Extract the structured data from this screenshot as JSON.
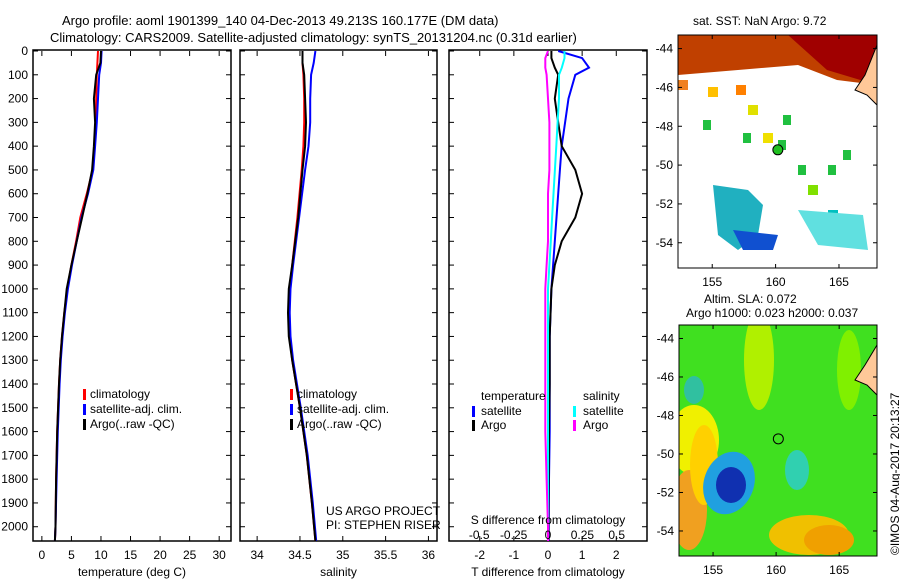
{
  "header": {
    "title1": "Argo profile: aoml 1901399_140 04-Dec-2013 49.213S 160.177E (DM data)",
    "title2": "Climatology: CARS2009. Satellite-adjusted climatology: synTS_20131204.nc (0.31d earlier)"
  },
  "credits": {
    "project": "US ARGO PROJECT",
    "pi": "PI: STEPHEN RISER",
    "stamp": "©IMOS 04-Aug-2017 20:13:27"
  },
  "colors": {
    "climatology": "#ff0000",
    "satellite": "#0000ff",
    "argo": "#000000",
    "s_satellite": "#00ffff",
    "s_argo": "#ff00ff"
  },
  "chart_data": [
    {
      "type": "line",
      "name": "temperature",
      "xlabel": "temperature (deg C)",
      "xlim": [
        -1.5,
        32
      ],
      "ylim": [
        2060,
        0
      ],
      "xticks": [
        0,
        5,
        10,
        15,
        20,
        25,
        30
      ],
      "yticks": [
        0,
        100,
        200,
        300,
        400,
        500,
        600,
        700,
        800,
        900,
        1000,
        1100,
        1200,
        1300,
        1400,
        1500,
        1600,
        1700,
        1800,
        1900,
        2000
      ],
      "legend": [
        "climatology",
        "satellite-adj. clim.",
        "Argo(..raw -QC)"
      ],
      "depth": [
        0,
        50,
        100,
        200,
        300,
        400,
        500,
        600,
        700,
        800,
        900,
        1000,
        1100,
        1200,
        1300,
        1400,
        1600,
        1800,
        2000,
        2060
      ],
      "series": [
        {
          "name": "climatology",
          "values": [
            9.5,
            9.4,
            9.3,
            9.2,
            9.1,
            8.9,
            8.6,
            7.6,
            6.5,
            5.8,
            5.0,
            4.3,
            3.8,
            3.4,
            3.1,
            2.9,
            2.6,
            2.4,
            2.3,
            2.2
          ]
        },
        {
          "name": "satellite-adj. clim.",
          "values": [
            10.1,
            10.0,
            9.7,
            9.5,
            9.3,
            9.0,
            8.7,
            7.8,
            6.7,
            5.9,
            5.1,
            4.4,
            3.9,
            3.5,
            3.2,
            3.0,
            2.7,
            2.5,
            2.3,
            2.2
          ]
        },
        {
          "name": "Argo(..raw -QC)",
          "values": [
            10.0,
            9.9,
            9.2,
            8.8,
            9.0,
            8.8,
            8.5,
            7.7,
            6.8,
            5.9,
            5.0,
            4.2,
            3.8,
            3.4,
            3.1,
            2.9,
            2.6,
            2.4,
            2.3,
            2.2
          ]
        }
      ]
    },
    {
      "type": "line",
      "name": "salinity",
      "xlabel": "salinity",
      "xlim": [
        33.8,
        36.1
      ],
      "ylim": [
        2060,
        0
      ],
      "xticks": [
        34,
        34.5,
        35,
        35.5,
        36
      ],
      "legend": [
        "climatology",
        "satellite-adj. clim.",
        "Argo(..raw -QC)"
      ],
      "depth": [
        0,
        50,
        100,
        200,
        300,
        400,
        500,
        700,
        900,
        1000,
        1100,
        1200,
        1300,
        1500,
        1700,
        1900,
        2060
      ],
      "series": [
        {
          "name": "climatology",
          "values": [
            34.53,
            34.53,
            34.54,
            34.55,
            34.55,
            34.54,
            34.52,
            34.47,
            34.41,
            34.38,
            34.37,
            34.38,
            34.41,
            34.5,
            34.58,
            34.64,
            34.68
          ]
        },
        {
          "name": "satellite-adj. clim.",
          "values": [
            34.68,
            34.66,
            34.63,
            34.62,
            34.62,
            34.6,
            34.56,
            34.49,
            34.42,
            34.39,
            34.38,
            34.39,
            34.42,
            34.51,
            34.59,
            34.65,
            34.69
          ]
        },
        {
          "name": "Argo(..raw -QC)",
          "values": [
            34.53,
            34.53,
            34.55,
            34.56,
            34.57,
            34.56,
            34.53,
            34.48,
            34.41,
            34.37,
            34.36,
            34.37,
            34.41,
            34.5,
            34.58,
            34.64,
            34.68
          ]
        }
      ]
    },
    {
      "type": "line",
      "name": "difference",
      "xlabel": "T difference from climatology",
      "x2label": "S difference from climatology",
      "xlim": [
        -2.9,
        2.9
      ],
      "x2lim": [
        -0.72,
        0.72
      ],
      "ylim": [
        2060,
        0
      ],
      "xticks": [
        -2,
        -1,
        0,
        1,
        2
      ],
      "x2ticks": [
        "-0.5",
        "-0.25",
        "0",
        "0.25",
        "0.5"
      ],
      "legend_t": {
        "title": "temperature",
        "items": [
          "satellite",
          "Argo"
        ]
      },
      "legend_s": {
        "title": "salinity",
        "items": [
          "satellite",
          "Argo"
        ]
      },
      "depth": [
        0,
        30,
        70,
        100,
        200,
        300,
        400,
        500,
        600,
        700,
        800,
        900,
        1000,
        1200,
        1400,
        1600,
        1800,
        2000,
        2060
      ],
      "series": [
        {
          "name": "T satellite",
          "axis": "T",
          "values": [
            0.3,
            1.0,
            1.2,
            0.8,
            0.6,
            0.5,
            0.4,
            0.35,
            0.3,
            0.25,
            0.2,
            0.15,
            0.1,
            0.05,
            0.05,
            0.05,
            0.03,
            0.02,
            0.02
          ]
        },
        {
          "name": "T Argo",
          "axis": "T",
          "values": [
            0.1,
            0.1,
            0.2,
            0.3,
            0.2,
            0.3,
            0.4,
            0.8,
            1.0,
            0.8,
            0.4,
            0.2,
            0.1,
            0.05,
            0.05,
            0.03,
            0.02,
            0.01,
            0.01
          ]
        },
        {
          "name": "S satellite",
          "axis": "S",
          "values": [
            0.12,
            0.12,
            0.1,
            0.08,
            0.08,
            0.07,
            0.06,
            0.05,
            0.04,
            0.03,
            0.02,
            0.01,
            0.0,
            0.0,
            0.0,
            0.0,
            0.0,
            0.0,
            0.0
          ]
        },
        {
          "name": "S Argo",
          "axis": "S",
          "values": [
            0.0,
            -0.02,
            -0.02,
            -0.01,
            0.0,
            0.01,
            0.01,
            0.01,
            0.0,
            0.0,
            0.0,
            -0.01,
            -0.02,
            -0.02,
            -0.02,
            -0.02,
            -0.01,
            0.0,
            0.0
          ]
        }
      ]
    },
    {
      "type": "heatmap",
      "name": "sst_map",
      "title": "sat. SST: NaN Argo: 9.72",
      "xlim": [
        152.3,
        168
      ],
      "ylim": [
        -55.3,
        -43.3
      ],
      "xticks": [
        155,
        160,
        165
      ],
      "yticks": [
        -44,
        -46,
        -48,
        -50,
        -52,
        -54
      ],
      "argo_position": [
        160.177,
        -49.213
      ]
    },
    {
      "type": "heatmap",
      "name": "sla_map",
      "title1": "Altim. SLA: 0.072",
      "title2": "Argo h1000: 0.023 h2000: 0.037",
      "xlim": [
        152.3,
        168
      ],
      "ylim": [
        -55.3,
        -43.3
      ],
      "xticks": [
        155,
        160,
        165
      ],
      "yticks": [
        -44,
        -46,
        -48,
        -50,
        -52,
        -54
      ],
      "argo_position": [
        160.177,
        -49.213
      ]
    }
  ]
}
